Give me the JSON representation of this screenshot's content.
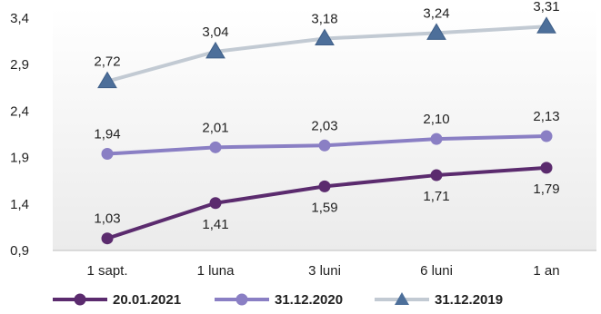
{
  "chart_data": {
    "type": "line",
    "categories": [
      "1 sapt.",
      "1 luna",
      "3 luni",
      "6 luni",
      "1 an"
    ],
    "y_ticks": [
      "0,9",
      "1,4",
      "1,9",
      "2,4",
      "2,9",
      "3,4"
    ],
    "ylim": [
      0.9,
      3.4
    ],
    "grid": false,
    "legend_position": "bottom",
    "series": [
      {
        "name": "20.01.2021",
        "values": [
          1.03,
          1.41,
          1.59,
          1.71,
          1.79
        ],
        "labels": [
          "1,03",
          "1,41",
          "1,59",
          "1,71",
          "1,79"
        ],
        "color": "#5b2b6e",
        "marker": "circle",
        "label_side": [
          "above",
          "below",
          "below",
          "below",
          "below"
        ]
      },
      {
        "name": "31.12.2020",
        "values": [
          1.94,
          2.01,
          2.03,
          2.1,
          2.13
        ],
        "labels": [
          "1,94",
          "2,01",
          "2,03",
          "2,10",
          "2,13"
        ],
        "color": "#8a7fc4",
        "marker": "circle",
        "label_side": [
          "above",
          "above",
          "above",
          "above",
          "above"
        ]
      },
      {
        "name": "31.12.2019",
        "values": [
          2.72,
          3.04,
          3.18,
          3.24,
          3.31
        ],
        "labels": [
          "2,72",
          "3,04",
          "3,18",
          "3,24",
          "3,31"
        ],
        "color": "#c2cad3",
        "marker_color": "#4d6f9a",
        "marker": "triangle",
        "label_side": [
          "above",
          "above",
          "above",
          "above",
          "above"
        ]
      }
    ]
  }
}
